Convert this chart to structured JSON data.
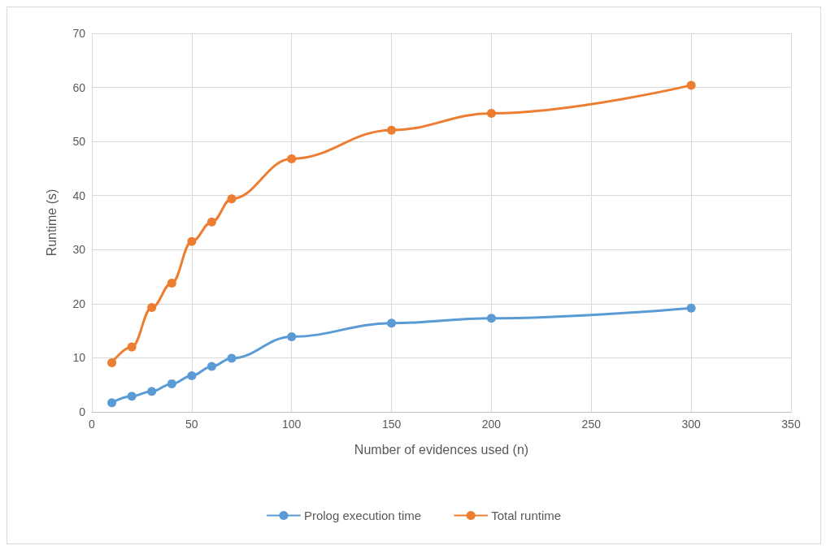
{
  "chart_data": {
    "type": "line",
    "xlabel": "Number of evidences used (n)",
    "ylabel": "Runtime (s)",
    "x": [
      10,
      20,
      30,
      40,
      50,
      60,
      70,
      100,
      150,
      200,
      300
    ],
    "series": [
      {
        "name": "Prolog execution time",
        "color": "#5b9bd5",
        "values": [
          1.7,
          2.9,
          3.8,
          5.2,
          6.7,
          8.4,
          9.9,
          13.9,
          16.4,
          17.3,
          19.2
        ]
      },
      {
        "name": "Total runtime",
        "color": "#ed7d31",
        "values": [
          9.1,
          12.0,
          19.3,
          23.8,
          31.5,
          35.1,
          39.4,
          46.8,
          52.1,
          55.2,
          60.4
        ]
      }
    ],
    "xlim": [
      0,
      350
    ],
    "xticks": [
      0,
      50,
      100,
      150,
      200,
      250,
      300,
      350
    ],
    "ylim": [
      0,
      70
    ],
    "yticks": [
      0,
      10,
      20,
      30,
      40,
      50,
      60,
      70
    ],
    "grid": true,
    "legend": "bottom",
    "marker": "circle",
    "line_style": "solid"
  }
}
